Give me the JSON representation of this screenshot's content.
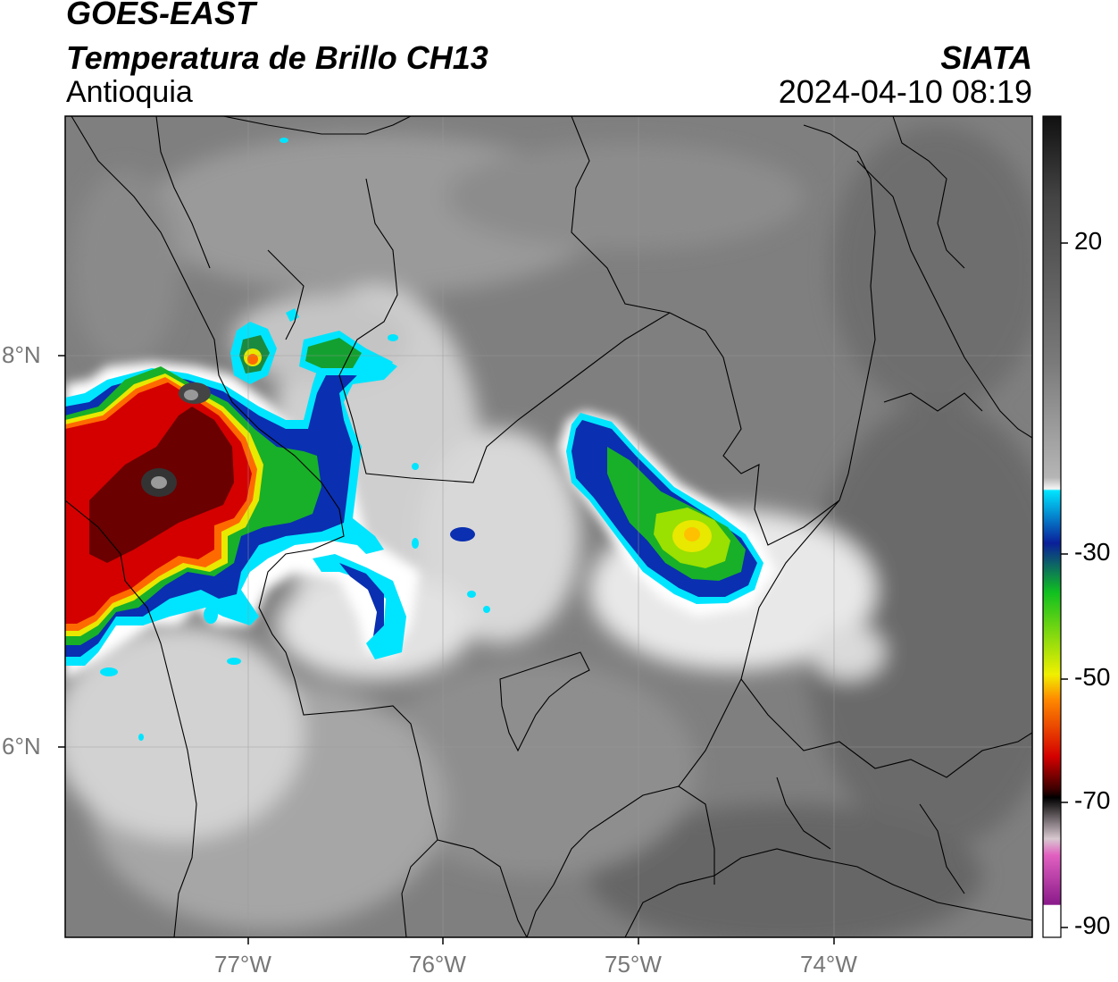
{
  "header": {
    "satellite": "GOES-EAST",
    "product": "Temperatura de Brillo CH13",
    "region": "Antioquia",
    "organization": "SIATA",
    "datetime": "2024-04-10 08:19"
  },
  "axes": {
    "lat_labels": [
      "8°N",
      "6°N"
    ],
    "lon_labels": [
      "77°W",
      "76°W",
      "75°W",
      "74°W"
    ]
  },
  "colorbar": {
    "tick_labels": [
      "20",
      "-30",
      "-50",
      "-70",
      "-90"
    ],
    "colors": {
      "top_dark": "#111111",
      "gray_mid": "#7a7a7a",
      "white": "#f6f6f6",
      "cyan": "#00e5ff",
      "blue": "#0a1f9a",
      "green": "#10c020",
      "yellow": "#f0f000",
      "orange": "#ff8a00",
      "red": "#d40000",
      "dark_red": "#3a0000",
      "black": "#000000",
      "pink": "#e060c0",
      "purple": "#8a1a8a"
    }
  }
}
